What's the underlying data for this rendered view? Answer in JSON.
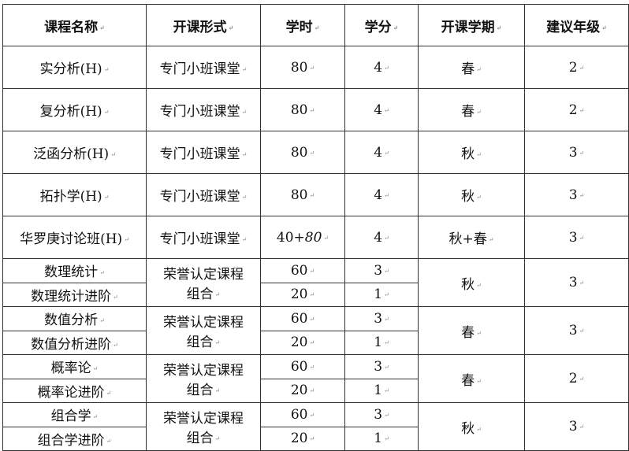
{
  "headers": [
    "课程名称",
    "开课形式",
    "学时",
    "学分",
    "开课学期",
    "建议年级"
  ],
  "single_rows": [
    {
      "name": "实分析(H)",
      "format": "专门小班课堂",
      "hours": "80",
      "credits": "4",
      "term": "春",
      "grade": "2"
    },
    {
      "name": "复分析(H)",
      "format": "专门小班课堂",
      "hours": "80",
      "credits": "4",
      "term": "春",
      "grade": "2"
    },
    {
      "name": "泛函分析(H)",
      "format": "专门小班课堂",
      "hours": "80",
      "credits": "4",
      "term": "秋",
      "grade": "3"
    },
    {
      "name": "拓扑学(H)",
      "format": "专门小班课堂",
      "hours": "80",
      "credits": "4",
      "term": "秋",
      "grade": "3"
    },
    {
      "name": "华罗庚讨论班(H)",
      "format": "专门小班课堂",
      "hours": "40+",
      "hours_italic": "80",
      "credits": "4",
      "term": "秋+春",
      "grade": "3"
    }
  ],
  "groups": [
    {
      "format_line1": "荣誉认定课程",
      "format_line2": "组合",
      "term": "秋",
      "grade": "3",
      "courses": [
        {
          "name": "数理统计",
          "hours": "60",
          "credits": "3"
        },
        {
          "name": "数理统计进阶",
          "hours": "20",
          "credits": "1"
        }
      ]
    },
    {
      "format_line1": "荣誉认定课程",
      "format_line2": "组合",
      "term": "春",
      "grade": "3",
      "courses": [
        {
          "name": "数值分析",
          "hours": "60",
          "credits": "3"
        },
        {
          "name": "数值分析进阶",
          "hours": "20",
          "credits": "1"
        }
      ]
    },
    {
      "format_line1": "荣誉认定课程",
      "format_line2": "组合",
      "term": "春",
      "grade": "2",
      "courses": [
        {
          "name": "概率论",
          "hours": "60",
          "credits": "3"
        },
        {
          "name": "概率论进阶",
          "hours": "20",
          "credits": "1"
        }
      ]
    },
    {
      "format_line1": "荣誉认定课程",
      "format_line2": "组合",
      "term": "秋",
      "grade": "3",
      "courses": [
        {
          "name": "组合学",
          "hours": "60",
          "credits": "3"
        },
        {
          "name": "组合学进阶",
          "hours": "20",
          "credits": "1"
        }
      ]
    }
  ]
}
